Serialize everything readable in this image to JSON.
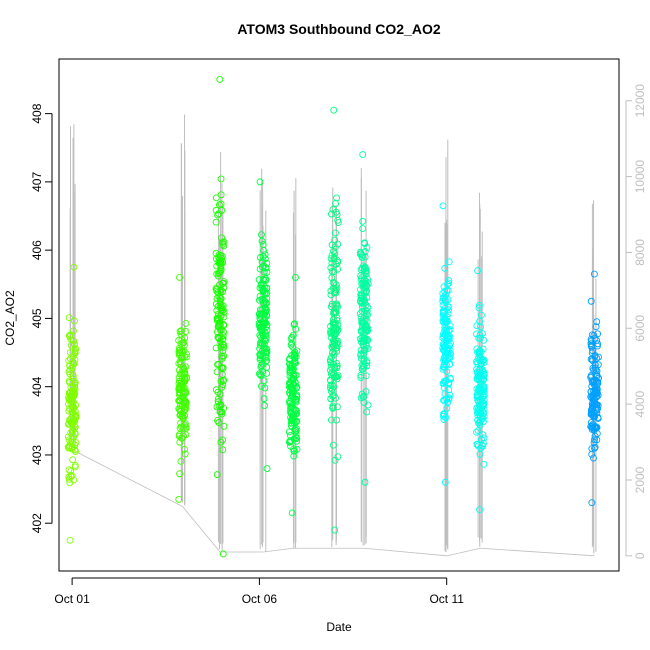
{
  "chart_data": {
    "type": "scatter",
    "title": "ATOM3 Southbound CO2_AO2",
    "xlabel": "Date",
    "ylabel": "CO2_AO2",
    "x_ticks": [
      "Oct 01",
      "Oct 06",
      "Oct 11"
    ],
    "x_tick_days": [
      1,
      6,
      11
    ],
    "xlim_days": [
      0.65,
      15.6
    ],
    "ylim": [
      401.3,
      408.8
    ],
    "y_ticks": [
      402,
      403,
      404,
      405,
      406,
      407,
      408
    ],
    "y2_ylim": [
      -400,
      13100
    ],
    "y2_ticks": [
      0,
      2000,
      4000,
      6000,
      8000,
      10000,
      12000
    ],
    "grid": false,
    "secondary_series_color": "#bebebe",
    "series": [
      {
        "day": 1.0,
        "y_min": 401.75,
        "y_max": 405.75,
        "color": "#80ff00"
      },
      {
        "day": 3.95,
        "y_min": 402.35,
        "y_max": 405.6,
        "color": "#40ff00"
      },
      {
        "day": 4.95,
        "y_min": 401.55,
        "y_max": 408.5,
        "color": "#19ff00"
      },
      {
        "day": 6.1,
        "y_min": 402.8,
        "y_max": 407.0,
        "color": "#00ff40"
      },
      {
        "day": 6.9,
        "y_min": 402.15,
        "y_max": 405.6,
        "color": "#00ff40"
      },
      {
        "day": 8.0,
        "y_min": 401.9,
        "y_max": 408.05,
        "color": "#00ff80"
      },
      {
        "day": 8.8,
        "y_min": 402.6,
        "y_max": 407.4,
        "color": "#00ffa0"
      },
      {
        "day": 11.0,
        "y_min": 402.6,
        "y_max": 406.65,
        "color": "#00ffff"
      },
      {
        "day": 11.9,
        "y_min": 402.2,
        "y_max": 405.7,
        "color": "#00ffee"
      },
      {
        "day": 14.95,
        "y_min": 402.3,
        "y_max": 405.65,
        "color": "#00a0ff"
      }
    ],
    "secondary_series": [
      {
        "day": 1.0,
        "y2_min": 2800,
        "y2_max": 12000
      },
      {
        "day": 3.95,
        "y2_min": 1300,
        "y2_max": 12300
      },
      {
        "day": 4.95,
        "y2_min": 100,
        "y2_max": 11000
      },
      {
        "day": 6.1,
        "y2_min": 100,
        "y2_max": 10700
      },
      {
        "day": 6.9,
        "y2_min": 200,
        "y2_max": 10700
      },
      {
        "day": 8.0,
        "y2_min": 200,
        "y2_max": 11500
      },
      {
        "day": 8.8,
        "y2_min": 200,
        "y2_max": 11200
      },
      {
        "day": 11.0,
        "y2_min": 0,
        "y2_max": 11500
      },
      {
        "day": 11.9,
        "y2_min": 200,
        "y2_max": 9600
      },
      {
        "day": 14.95,
        "y2_min": 0,
        "y2_max": 9700
      }
    ]
  }
}
